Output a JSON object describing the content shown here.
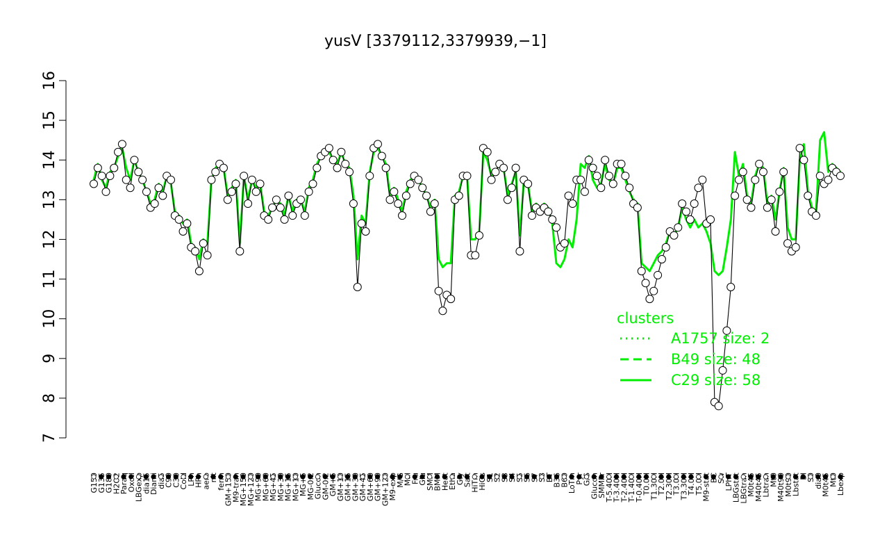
{
  "chart_data": {
    "type": "line",
    "title": "yusV [3379112,3379939,−1]",
    "xlabel": "",
    "ylabel": "",
    "ylim": [
      7,
      16
    ],
    "yticks": [
      "7",
      "8",
      "9",
      "10",
      "11",
      "12",
      "13",
      "14",
      "15",
      "16"
    ],
    "xticks": [
      "G150",
      "G135",
      "G180",
      "H2O2",
      "Paraq",
      "Oxctl",
      "LBGexp",
      "dia15",
      "Diami",
      "dia5",
      "C90",
      "C30",
      "Cold",
      "LPh",
      "HPh",
      "aero",
      "nit",
      "ferm",
      "GM+150",
      "M9-tran",
      "MG+150",
      "MG+120",
      "MG+90",
      "MG+60",
      "MG+45",
      "MG+30",
      "MG+15",
      "MG+10",
      "MG+5",
      "MG-0.2",
      "Glucon",
      "GM-0.2",
      "GM+5",
      "GM+10",
      "GM+15",
      "GM+30",
      "GM+45",
      "GM+60",
      "GM+90",
      "GM+120",
      "M9-exp",
      "M/G",
      "Mal",
      "Fru",
      "Glu",
      "SMM",
      "BMM",
      "Heat",
      "Etha",
      "Gly",
      "Salt",
      "HiTm",
      "HiOs",
      "S1",
      "S2",
      "S3",
      "S4",
      "S5",
      "S6",
      "S7",
      "S8",
      "BT",
      "B36",
      "B60",
      "LoTm",
      "Pyr",
      "G/S",
      "Glucon",
      "SMMPr",
      "T-5.40H",
      "T-3.40H",
      "T-2.40H",
      "T-1.40H",
      "T-0.40H",
      "T0.0H",
      "T1.30H",
      "T2.0H",
      "T2.30H",
      "T3.0H",
      "T3.30H",
      "T4.0H",
      "T5.0H",
      "M9-stat",
      "BC",
      "Sw",
      "LPhT",
      "LBGstat",
      "LBGtran",
      "M0t45",
      "M40t45",
      "Lbtran",
      "Mt0",
      "M40t90",
      "M0t90",
      "Lbstat",
      "BI",
      "S0",
      "dia0",
      "M0t45",
      "Mt0",
      "Lbexp"
    ],
    "clusters": [
      {
        "name": "A1757 size: 2",
        "style": "dotted"
      },
      {
        "name": "B49 size: 48",
        "style": "dashed"
      },
      {
        "name": "C29 size: 58",
        "style": "solid"
      }
    ],
    "series_expression": [
      13.4,
      13.8,
      13.6,
      13.2,
      13.6,
      13.8,
      14.2,
      14.4,
      13.5,
      13.3,
      14.0,
      13.7,
      13.5,
      13.2,
      12.8,
      12.9,
      13.3,
      13.1,
      13.6,
      13.5,
      12.6,
      12.5,
      12.2,
      12.4,
      11.8,
      11.7,
      11.2,
      11.9,
      11.6,
      13.5,
      13.7,
      13.9,
      13.8,
      13.0,
      13.2,
      13.4,
      11.7,
      13.6,
      12.9,
      13.5,
      13.2,
      13.4,
      12.6,
      12.5,
      12.8,
      13.0,
      12.8,
      12.5,
      13.1,
      12.6,
      12.9,
      13.0,
      12.6,
      13.2,
      13.4,
      13.8,
      14.1,
      14.2,
      14.3,
      14.0,
      13.8,
      14.2,
      13.9,
      13.7,
      12.9,
      10.8,
      12.4,
      12.2,
      13.6,
      14.3,
      14.4,
      14.1,
      13.8,
      13.0,
      13.2,
      12.9,
      12.6,
      13.1,
      13.4,
      13.6,
      13.5,
      13.3,
      13.1,
      12.7,
      12.9,
      10.7,
      10.2,
      10.6,
      10.5,
      13.0,
      13.1,
      13.6,
      13.6,
      11.6,
      11.6,
      12.1,
      14.3,
      14.2,
      13.5,
      13.7,
      13.9,
      13.8,
      13.0,
      13.3,
      13.8,
      11.7,
      13.5,
      13.4,
      12.6,
      12.8,
      12.7,
      12.8,
      12.7,
      12.5,
      12.3,
      11.8,
      11.9,
      13.1,
      12.9,
      13.5,
      13.5,
      13.2,
      14.0,
      13.8,
      13.6,
      13.3,
      14.0,
      13.6,
      13.4,
      13.9,
      13.9,
      13.6,
      13.3,
      12.9,
      12.8,
      11.2,
      10.9,
      10.5,
      10.7,
      11.1,
      11.5,
      11.8,
      12.2,
      12.1,
      12.3,
      12.9,
      12.7,
      12.5,
      12.9,
      13.3,
      13.5,
      12.4,
      12.5,
      7.9,
      7.8,
      8.7,
      9.7,
      10.8,
      13.1,
      13.5,
      13.7,
      13.0,
      12.8,
      13.5,
      13.9,
      13.7,
      12.8,
      13.0,
      12.2,
      13.2,
      13.7,
      11.9,
      11.7,
      11.8,
      14.3,
      14.0,
      13.1,
      12.7,
      12.6,
      13.6,
      13.4,
      13.5,
      13.8,
      13.7,
      13.6
    ],
    "series_cluster_avg": [
      13.5,
      13.9,
      13.5,
      13.3,
      13.7,
      13.8,
      14.1,
      14.3,
      13.8,
      13.5,
      14.0,
      13.7,
      13.5,
      13.2,
      12.9,
      13.0,
      13.4,
      13.2,
      13.6,
      13.4,
      12.7,
      12.6,
      12.4,
      12.5,
      11.9,
      11.8,
      11.5,
      12.0,
      11.9,
      13.5,
      13.8,
      13.9,
      13.8,
      13.1,
      13.3,
      13.5,
      11.9,
      13.6,
      13.0,
      13.5,
      13.3,
      13.4,
      12.7,
      12.6,
      12.8,
      13.0,
      12.9,
      12.6,
      13.1,
      12.7,
      13.0,
      13.0,
      12.7,
      13.3,
      13.5,
      13.9,
      14.1,
      14.2,
      14.2,
      14.0,
      13.9,
      14.2,
      13.9,
      13.8,
      13.1,
      11.5,
      12.6,
      12.4,
      13.7,
      14.2,
      14.3,
      14.1,
      13.9,
      13.1,
      13.3,
      13.0,
      12.7,
      13.2,
      13.5,
      13.6,
      13.5,
      13.3,
      13.1,
      12.8,
      13.0,
      11.5,
      11.3,
      11.4,
      11.4,
      13.1,
      13.2,
      13.6,
      13.6,
      12.0,
      12.0,
      12.2,
      14.2,
      14.0,
      13.6,
      13.7,
      13.9,
      13.8,
      13.1,
      13.4,
      13.7,
      12.1,
      13.5,
      13.4,
      12.7,
      12.9,
      12.8,
      12.9,
      12.8,
      12.4,
      11.4,
      11.3,
      11.5,
      12.0,
      11.8,
      12.5,
      13.9,
      13.8,
      14.1,
      13.5,
      13.3,
      13.4,
      13.9,
      13.5,
      13.4,
      13.8,
      13.8,
      13.5,
      13.2,
      13.0,
      12.9,
      11.4,
      11.3,
      11.2,
      11.4,
      11.6,
      11.7,
      11.9,
      12.2,
      12.1,
      12.3,
      12.8,
      12.5,
      12.3,
      12.5,
      12.3,
      12.4,
      12.2,
      11.9,
      11.2,
      11.1,
      11.2,
      11.8,
      12.5,
      14.2,
      13.6,
      13.9,
      13.1,
      12.9,
      13.6,
      13.9,
      13.8,
      12.9,
      13.1,
      12.5,
      13.2,
      13.8,
      12.3,
      12.0,
      12.0,
      14.0,
      14.4,
      13.2,
      12.8,
      12.7,
      14.5,
      14.7,
      13.7,
      13.9,
      13.8,
      13.7
    ]
  }
}
